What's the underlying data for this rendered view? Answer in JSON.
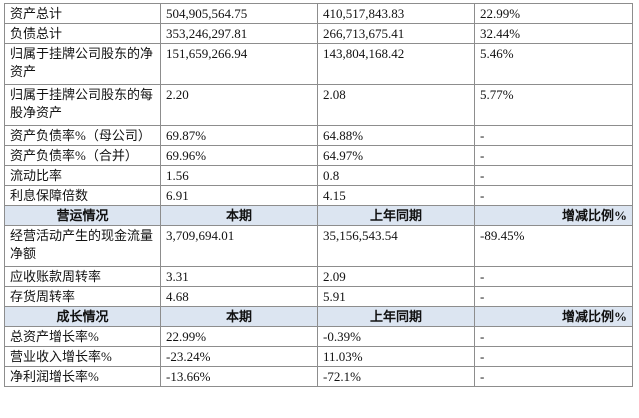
{
  "rows_top": [
    {
      "label": "资产总计",
      "current": "504,905,564.75",
      "previous": "410,517,843.83",
      "change": "22.99%"
    },
    {
      "label": "负债总计",
      "current": "353,246,297.81",
      "previous": "266,713,675.41",
      "change": "32.44%"
    },
    {
      "label": "归属于挂牌公司股东的净资产",
      "current": "151,659,266.94",
      "previous": "143,804,168.42",
      "change": "5.46%"
    },
    {
      "label": "归属于挂牌公司股东的每股净资产",
      "current": "2.20",
      "previous": "2.08",
      "change": "5.77%"
    },
    {
      "label": "资产负债率%（母公司）",
      "current": "69.87%",
      "previous": "64.88%",
      "change": "-"
    },
    {
      "label": "资产负债率%（合并）",
      "current": "69.96%",
      "previous": "64.97%",
      "change": "-"
    },
    {
      "label": "流动比率",
      "current": "1.56",
      "previous": "0.8",
      "change": "-"
    },
    {
      "label": "利息保障倍数",
      "current": "6.91",
      "previous": "4.15",
      "change": "-"
    }
  ],
  "operations_header": {
    "title": "营运情况",
    "current": "本期",
    "previous": "上年同期",
    "change": "增减比例%"
  },
  "rows_operations": [
    {
      "label": "经营活动产生的现金流量净额",
      "current": "3,709,694.01",
      "previous": "35,156,543.54",
      "change": "-89.45%"
    },
    {
      "label": "应收账款周转率",
      "current": "3.31",
      "previous": "2.09",
      "change": "-"
    },
    {
      "label": "存货周转率",
      "current": "4.68",
      "previous": "5.91",
      "change": "-"
    }
  ],
  "growth_header": {
    "title": "成长情况",
    "current": "本期",
    "previous": "上年同期",
    "change": "增减比例%"
  },
  "rows_growth": [
    {
      "label": "总资产增长率%",
      "current": "22.99%",
      "previous": "-0.39%",
      "change": "-"
    },
    {
      "label": "营业收入增长率%",
      "current": "-23.24%",
      "previous": "11.03%",
      "change": "-"
    },
    {
      "label": "净利润增长率%",
      "current": "-13.66%",
      "previous": "-72.1%",
      "change": "-"
    }
  ],
  "colors": {
    "header_bg": "#dce5f1",
    "border": "#8d8d8d",
    "text": "#111111"
  }
}
